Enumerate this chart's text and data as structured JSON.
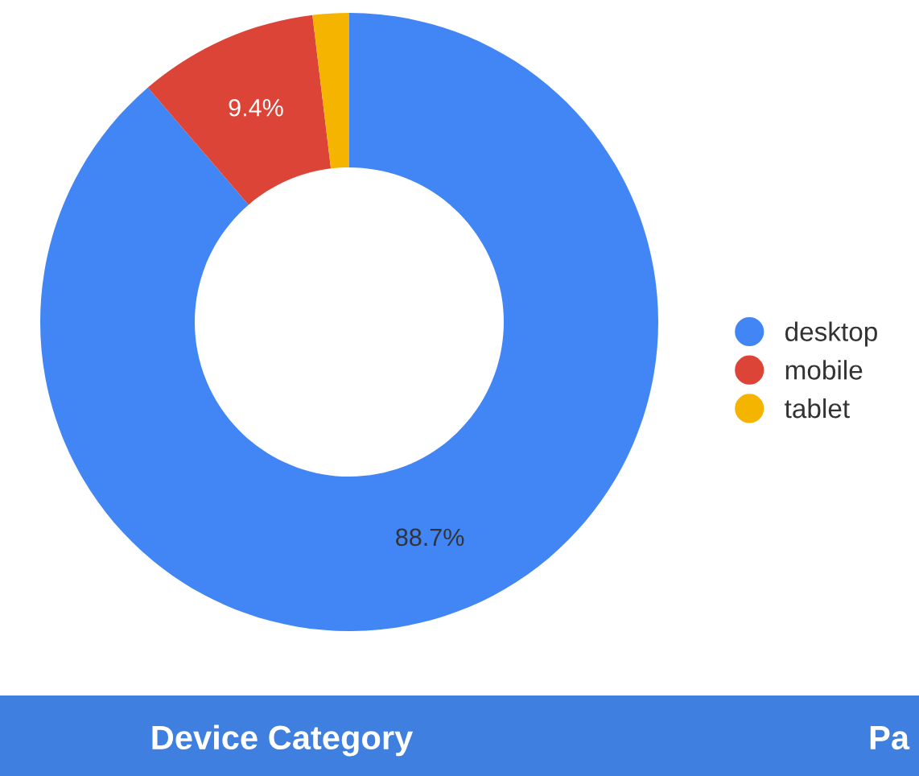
{
  "chart_data": {
    "type": "donut",
    "categories": [
      "desktop",
      "mobile",
      "tablet"
    ],
    "values": [
      88.7,
      9.4,
      1.9
    ],
    "colors": [
      "#4285f4",
      "#db4437",
      "#f4b400"
    ],
    "value_labels": [
      "88.7%",
      "9.4%",
      null
    ],
    "legend": "right",
    "annotations": [
      "Device Category",
      "Pa"
    ]
  }
}
